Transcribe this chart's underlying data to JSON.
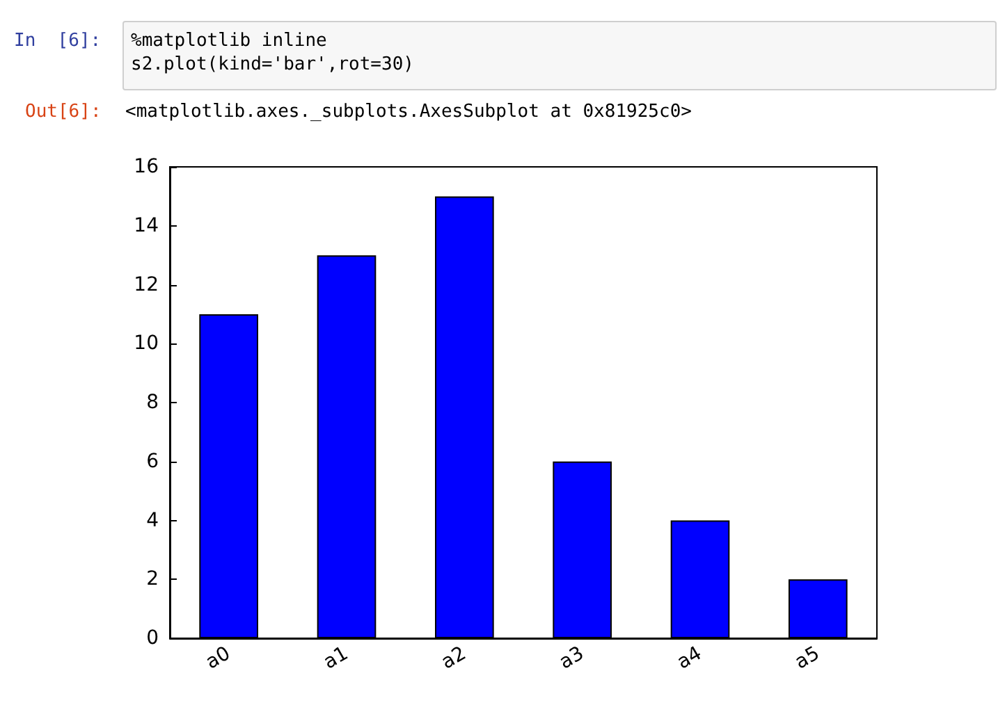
{
  "chart_data": {
    "type": "bar",
    "annotations": [
      "In  [6]:",
      "%matplotlib inline\ns2.plot(kind='bar',rot=30)",
      "Out[6]:",
      "<matplotlib.axes._subplots.AxesSubplot at 0x81925c0>"
    ],
    "categories": [
      "a0",
      "a1",
      "a2",
      "a3",
      "a4",
      "a5"
    ],
    "values": [
      11,
      13,
      15,
      6,
      4,
      2
    ],
    "color": "#0000ff",
    "ylim": [
      0,
      16
    ],
    "yticks": [
      0,
      2,
      4,
      6,
      8,
      10,
      12,
      14,
      16
    ],
    "grid": false
  }
}
